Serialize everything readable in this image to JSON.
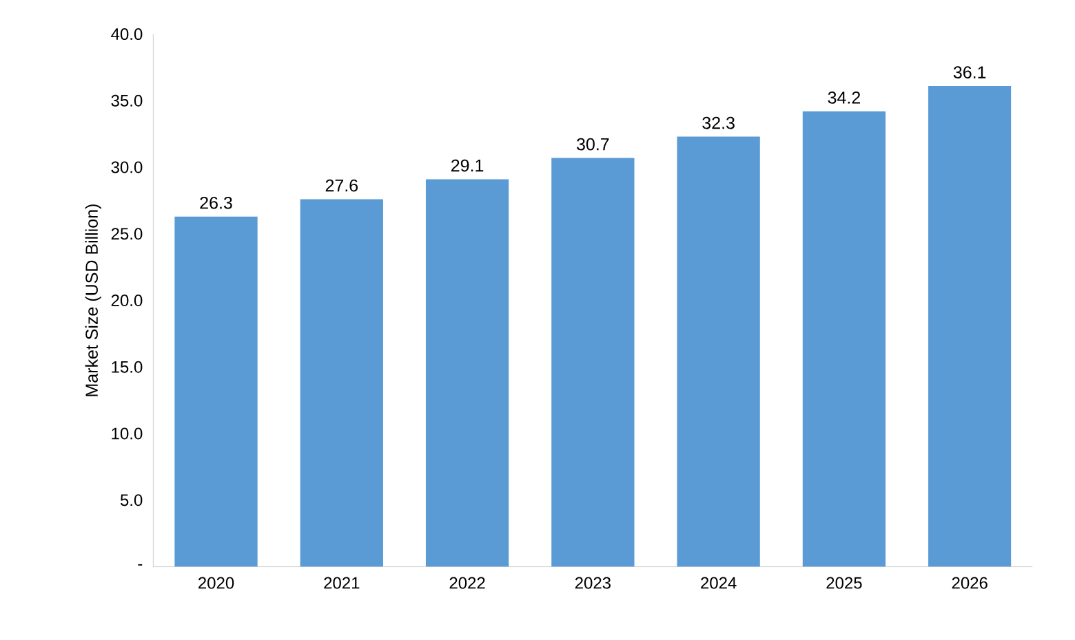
{
  "chart_data": {
    "type": "bar",
    "ylabel": "Market Size (USD Billion)",
    "categories": [
      "2020",
      "2021",
      "2022",
      "2023",
      "2024",
      "2025",
      "2026"
    ],
    "values": [
      26.3,
      27.6,
      29.1,
      30.7,
      32.3,
      34.2,
      36.1
    ],
    "color": "#5b9bd5",
    "data_labels": true,
    "ylim": [
      0,
      40
    ],
    "yticks": [
      {
        "value": 0,
        "label": "-"
      },
      {
        "value": 5,
        "label": "5.0"
      },
      {
        "value": 10,
        "label": "10.0"
      },
      {
        "value": 15,
        "label": "15.0"
      },
      {
        "value": 20,
        "label": "20.0"
      },
      {
        "value": 25,
        "label": "25.0"
      },
      {
        "value": 30,
        "label": "30.0"
      },
      {
        "value": 35,
        "label": "35.0"
      },
      {
        "value": 40,
        "label": "40.0"
      }
    ]
  }
}
